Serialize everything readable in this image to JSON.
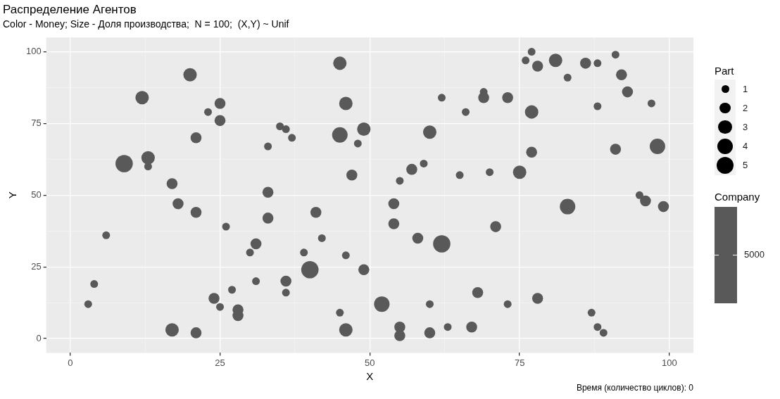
{
  "chart_data": {
    "type": "bubble",
    "title": "Распределение Агентов",
    "subtitle": "Color - Money; Size - Доля производства;  N = 100;  (X,Y) ~ Unif",
    "xlabel": "X",
    "ylabel": "Y",
    "legend_title": "Part",
    "clabel": "Company",
    "size_legend": [
      1,
      2,
      3,
      4,
      5
    ],
    "annotations": [
      "Время (количество циклов): 0",
      "5000"
    ],
    "xlim": [
      -4,
      104
    ],
    "ylim": [
      -5,
      105
    ],
    "xticks": [
      0,
      {
        "value": 12.5,
        "label": null
      },
      25,
      {
        "value": 37.5,
        "label": null
      },
      50,
      {
        "value": 62.5,
        "label": null
      },
      75,
      {
        "value": 87.5,
        "label": null
      },
      100
    ],
    "yticks": [
      0,
      {
        "value": 12.5,
        "label": null
      },
      25,
      {
        "value": 37.5,
        "label": null
      },
      50,
      {
        "value": 62.5,
        "label": null
      },
      75,
      {
        "value": 87.5,
        "label": null
      },
      100
    ],
    "grid": true,
    "series": [
      {
        "color": "#595959",
        "x": [
          45,
          20,
          12,
          25,
          23,
          25,
          46,
          35,
          36,
          37,
          33,
          45,
          49,
          48,
          21,
          9,
          13,
          13,
          17,
          47,
          33,
          18,
          21,
          33,
          41,
          26,
          6,
          31,
          42,
          30,
          39,
          46,
          40,
          49,
          4,
          31,
          36,
          27,
          36,
          3,
          24,
          25,
          28,
          28,
          45,
          17,
          21,
          46,
          60,
          77,
          76,
          78,
          81,
          86,
          88,
          91,
          83,
          92,
          93,
          62,
          69,
          69,
          73,
          66,
          77,
          88,
          97,
          77,
          91,
          98,
          59,
          57,
          55,
          65,
          70,
          75,
          95,
          96,
          99,
          83,
          54,
          54,
          71,
          58,
          62,
          68,
          78,
          52,
          60,
          73,
          87,
          88,
          89,
          55,
          55,
          60,
          63,
          67
        ],
        "values": [
          96,
          92,
          84,
          82,
          79,
          76,
          82,
          74,
          73,
          70,
          67,
          71,
          73,
          68,
          70,
          61,
          63,
          60,
          54,
          57,
          51,
          47,
          44,
          42,
          44,
          39,
          36,
          33,
          35,
          30,
          30,
          29,
          24,
          24,
          19,
          20,
          20,
          17,
          16,
          12,
          14,
          11,
          10,
          8,
          9,
          3,
          2,
          3,
          72,
          100,
          97,
          95,
          97,
          96,
          96,
          99,
          91,
          92,
          86,
          84,
          86,
          84,
          84,
          79,
          79,
          81,
          82,
          65,
          66,
          67,
          61,
          59,
          55,
          57,
          58,
          58,
          50,
          48,
          46,
          46,
          47,
          40,
          39,
          35,
          33,
          16,
          14,
          12,
          12,
          12,
          9,
          4,
          2,
          4,
          1,
          2,
          4,
          4
        ],
        "sizes": [
          3,
          3,
          3,
          2,
          1,
          2,
          3,
          1,
          1,
          1,
          1,
          4,
          3,
          1,
          2,
          5,
          3,
          1,
          2,
          2,
          2,
          2,
          2,
          2,
          2,
          1,
          1,
          2,
          1,
          1,
          1,
          1,
          5,
          2,
          1,
          1,
          2,
          1,
          1,
          1,
          2,
          1,
          2,
          2,
          1,
          3,
          2,
          3,
          3,
          1,
          1,
          2,
          3,
          2,
          1,
          1,
          1,
          2,
          2,
          1,
          1,
          2,
          2,
          1,
          3,
          1,
          1,
          2,
          2,
          4,
          1,
          2,
          1,
          1,
          1,
          3,
          1,
          2,
          2,
          4,
          2,
          2,
          2,
          2,
          5,
          2,
          2,
          4,
          1,
          1,
          1,
          1,
          1,
          2,
          2,
          2,
          1,
          2
        ]
      }
    ]
  }
}
